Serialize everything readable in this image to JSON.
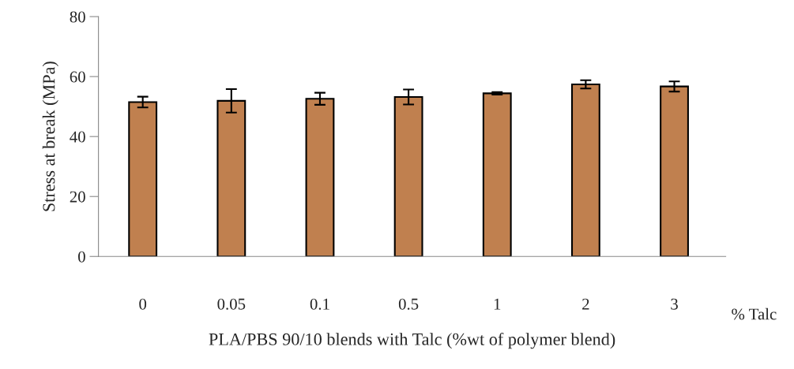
{
  "chart_data": {
    "type": "bar",
    "xlabel": "PLA/PBS 90/10 blends with Talc (%wt of polymer blend)",
    "ylabel": "Stress at break (MPa)",
    "categories": [
      "0",
      "0.05",
      "0.1",
      "0.5",
      "1",
      "2",
      "3"
    ],
    "values": [
      51.5,
      51.9,
      52.6,
      53.2,
      54.4,
      57.4,
      56.7
    ],
    "errors": [
      1.8,
      3.9,
      2.0,
      2.5,
      0.4,
      1.4,
      1.7
    ],
    "color": "#c0804f",
    "ylim": [
      0,
      80
    ],
    "yticks": [
      0,
      20,
      40,
      60,
      80
    ],
    "grid": false,
    "annotations": [
      "% Talc"
    ]
  }
}
